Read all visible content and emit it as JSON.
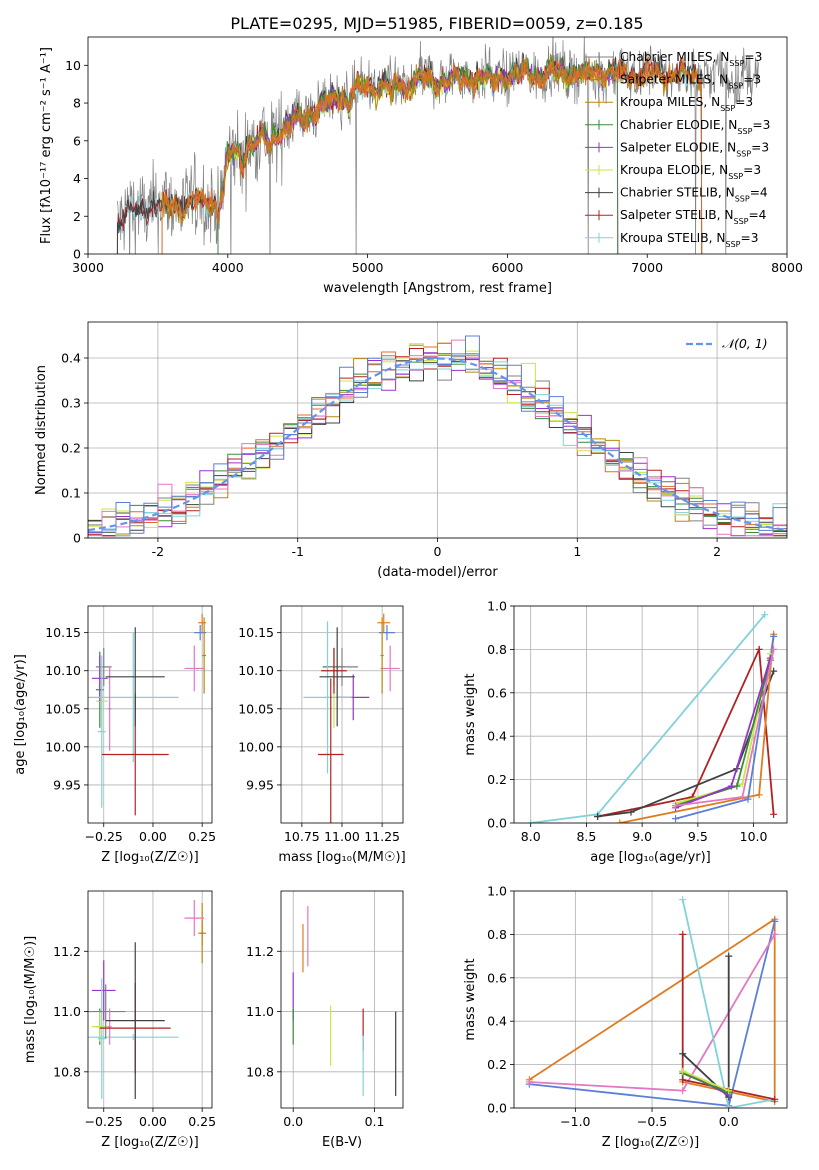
{
  "figure": {
    "title": "PLATE=0295, MJD=51985, FIBERID=0059, z=0.185"
  },
  "colors": {
    "chab_miles": "#808080",
    "salp_miles": "#e36a2e",
    "krou_miles": "#b8860b",
    "chab_elodie": "#3a8a3a",
    "salp_elodie": "#9932cc",
    "krou_elodie": "#c8e64a",
    "chab_stelib": "#404040",
    "salp_stelib": "#b22222",
    "krou_stelib": "#7fd3d8",
    "pink": "#e377c2",
    "blue": "#5b7fd6",
    "orange": "#e07b20",
    "normal": "#6495ed"
  },
  "chart_data": [
    {
      "id": "spectrum",
      "type": "line",
      "xlabel": "wavelength [Angstrom, rest frame]",
      "ylabel": "Flux [fλ10⁻¹⁷ erg cm⁻² s⁻¹ A⁻¹]",
      "xlim": [
        3000,
        8000
      ],
      "ylim": [
        0,
        11.5
      ],
      "xticks": [
        3000,
        4000,
        5000,
        6000,
        7000,
        8000
      ],
      "yticks": [
        0,
        2,
        4,
        6,
        8,
        10
      ],
      "grid": false,
      "legend_position": "upper right",
      "series": [
        {
          "name": "Chabrier MILES, N<sub>SSP</sub>=3",
          "color_key": "chab_miles",
          "x_range": [
            3210,
            7800
          ]
        },
        {
          "name": "Salpeter MILES, N<sub>SSP</sub>=3",
          "color_key": "salp_miles",
          "x_range": [
            3530,
            7390
          ]
        },
        {
          "name": "Kroupa MILES, N<sub>SSP</sub>=3",
          "color_key": "krou_miles",
          "x_range": [
            3530,
            7390
          ]
        },
        {
          "name": "Chabrier ELODIE, N<sub>SSP</sub>=3",
          "color_key": "chab_elodie",
          "x_range": [
            3930,
            6790
          ]
        },
        {
          "name": "Salpeter ELODIE, N<sub>SSP</sub>=3",
          "color_key": "salp_elodie",
          "x_range": [
            3930,
            6790
          ]
        },
        {
          "name": "Kroupa ELODIE, N<sub>SSP</sub>=3",
          "color_key": "krou_elodie",
          "x_range": [
            3930,
            6790
          ]
        },
        {
          "name": "Chabrier STELIB, N<sub>SSP</sub>=4",
          "color_key": "chab_stelib",
          "x_range": [
            3210,
            7390
          ]
        },
        {
          "name": "Salpeter STELIB, N<sub>SSP</sub>=4",
          "color_key": "salp_stelib",
          "x_range": [
            3210,
            7390
          ]
        },
        {
          "name": "Kroupa STELIB, N<sub>SSP</sub>=3",
          "color_key": "krou_stelib",
          "x_range": [
            3210,
            7390
          ]
        }
      ],
      "profile": {
        "x": [
          3210,
          3300,
          3500,
          3700,
          3900,
          4000,
          4300,
          4500,
          4800,
          5000,
          5300,
          5600,
          5900,
          6200,
          6500,
          6800,
          7100,
          7390,
          7600,
          7800
        ],
        "y": [
          1.8,
          2.3,
          2.6,
          2.7,
          2.9,
          5.2,
          6.3,
          7.2,
          8.4,
          8.9,
          9.2,
          9.3,
          9.5,
          9.6,
          9.7,
          9.6,
          9.6,
          9.5,
          9.4,
          9.3
        ]
      }
    },
    {
      "id": "residuals",
      "type": "histogram",
      "xlabel": "(data-model)/error",
      "ylabel": "Normed distribution",
      "xlim": [
        -2.5,
        2.5
      ],
      "ylim": [
        0,
        0.48
      ],
      "xticks": [
        -2,
        -1,
        0,
        1,
        2
      ],
      "yticks": [
        0.0,
        0.1,
        0.2,
        0.3,
        0.4
      ],
      "grid": true,
      "legend_position": "upper right",
      "legend": [
        {
          "name": "𝒩(0, 1)",
          "color_key": "normal"
        }
      ],
      "bin_width": 0.1
    },
    {
      "id": "Z-age",
      "type": "errorbar",
      "xlabel": "Z [log₁₀(Z/Z☉)]",
      "ylabel": "age  [log₁₀(age/yr)]",
      "xlim": [
        -0.33,
        0.3
      ],
      "ylim": [
        9.9,
        10.185
      ],
      "xticks": [
        -0.25,
        0.0,
        0.25
      ],
      "xticklabels": [
        "−0.25",
        "0.00",
        "0.25"
      ],
      "yticks": [
        9.95,
        10.0,
        10.05,
        10.1,
        10.15
      ],
      "yticklabels": [
        "9.95",
        "10.00",
        "10.05",
        "10.10",
        "10.15"
      ],
      "grid": true,
      "points": [
        {
          "x": -0.27,
          "xerr": 0.02,
          "y": 10.075,
          "yerr": 0.05,
          "color_key": "chab_elodie"
        },
        {
          "x": -0.26,
          "xerr": 0.03,
          "y": 10.06,
          "yerr": 0.04,
          "color_key": "krou_elodie"
        },
        {
          "x": -0.27,
          "xerr": 0.04,
          "y": 10.09,
          "yerr": 0.03,
          "color_key": "salp_elodie"
        },
        {
          "x": -0.25,
          "xerr": 0.04,
          "y": 10.105,
          "yerr": 0.025,
          "color_key": "chab_miles"
        },
        {
          "x": -0.26,
          "xerr": 0.02,
          "y": 10.02,
          "yerr": 0.1,
          "color_key": "krou_stelib"
        },
        {
          "x": -0.1,
          "xerr": 0.23,
          "y": 10.065,
          "yerr": 0.085,
          "color_key": "krou_stelib"
        },
        {
          "x": -0.22,
          "xerr": 0.01,
          "y": 10.05,
          "yerr": 0.055,
          "color_key": "pink"
        },
        {
          "x": -0.09,
          "xerr": 0.17,
          "y": 9.99,
          "yerr": 0.08,
          "color_key": "salp_stelib"
        },
        {
          "x": -0.09,
          "xerr": 0.15,
          "y": 10.092,
          "yerr": 0.065,
          "color_key": "chab_stelib"
        },
        {
          "x": 0.25,
          "xerr": 0.02,
          "y": 10.163,
          "yerr": 0.012,
          "color_key": "orange"
        },
        {
          "x": 0.24,
          "xerr": 0.03,
          "y": 10.15,
          "yerr": 0.01,
          "color_key": "blue"
        },
        {
          "x": 0.21,
          "xerr": 0.05,
          "y": 10.103,
          "yerr": 0.03,
          "color_key": "pink"
        },
        {
          "x": 0.26,
          "xerr": 0.01,
          "y": 10.12,
          "yerr": 0.05,
          "color_key": "krou_miles"
        }
      ]
    },
    {
      "id": "mass-age",
      "type": "errorbar",
      "xlabel": "mass [log₁₀(M/M☉)]",
      "ylabel": "",
      "xlim": [
        10.62,
        11.38
      ],
      "ylim": [
        9.9,
        10.185
      ],
      "xticks": [
        10.75,
        11.0,
        11.25
      ],
      "xticklabels": [
        "10.75",
        "11.00",
        "11.25"
      ],
      "yticks": [
        9.95,
        10.0,
        10.05,
        10.1,
        10.15
      ],
      "yticklabels": [
        "9.95",
        "10.00",
        "10.05",
        "10.10",
        "10.15"
      ],
      "grid": true,
      "points": [
        {
          "x": 10.95,
          "xerr": 0.07,
          "y": 10.105,
          "yerr": 0.025,
          "color_key": "chab_elodie"
        },
        {
          "x": 10.95,
          "xerr": 0.06,
          "y": 10.065,
          "yerr": 0.04,
          "color_key": "krou_elodie"
        },
        {
          "x": 11.07,
          "xerr": 0.1,
          "y": 10.065,
          "yerr": 0.03,
          "color_key": "salp_elodie"
        },
        {
          "x": 11.0,
          "xerr": 0.1,
          "y": 10.105,
          "yerr": 0.025,
          "color_key": "chab_miles"
        },
        {
          "x": 10.91,
          "xerr": 0.15,
          "y": 10.065,
          "yerr": 0.1,
          "color_key": "krou_stelib"
        },
        {
          "x": 10.95,
          "xerr": 0.08,
          "y": 10.1,
          "yerr": 0.03,
          "color_key": "salp_stelib"
        },
        {
          "x": 10.93,
          "xerr": 0.08,
          "y": 9.99,
          "yerr": 0.1,
          "color_key": "salp_stelib"
        },
        {
          "x": 10.97,
          "xerr": 0.11,
          "y": 10.092,
          "yerr": 0.065,
          "color_key": "chab_stelib"
        },
        {
          "x": 11.26,
          "xerr": 0.04,
          "y": 10.163,
          "yerr": 0.012,
          "color_key": "orange"
        },
        {
          "x": 11.28,
          "xerr": 0.05,
          "y": 10.15,
          "yerr": 0.01,
          "color_key": "blue"
        },
        {
          "x": 11.3,
          "xerr": 0.06,
          "y": 10.103,
          "yerr": 0.03,
          "color_key": "pink"
        },
        {
          "x": 11.25,
          "xerr": 0.01,
          "y": 10.12,
          "yerr": 0.05,
          "color_key": "krou_miles"
        }
      ]
    },
    {
      "id": "age-weight",
      "type": "line",
      "xlabel": "age  [log₁₀(age/yr)]",
      "ylabel": "mass weight",
      "xlim": [
        7.85,
        10.3
      ],
      "ylim": [
        0,
        1.0
      ],
      "xticks": [
        8.0,
        8.5,
        9.0,
        9.5,
        10.0
      ],
      "xticklabels": [
        "8.0",
        "8.5",
        "9.0",
        "9.5",
        "10.0"
      ],
      "yticks": [
        0,
        0.2,
        0.4,
        0.6,
        0.8,
        1.0
      ],
      "yticklabels": [
        "0.0",
        "0.2",
        "0.4",
        "0.6",
        "0.8",
        "1.0"
      ],
      "grid": true,
      "series": [
        {
          "color_key": "krou_stelib",
          "x": [
            8.0,
            8.6,
            10.1
          ],
          "y": [
            0.0,
            0.04,
            0.96
          ]
        },
        {
          "color_key": "salp_stelib",
          "x": [
            8.6,
            9.45,
            10.05,
            10.18
          ],
          "y": [
            0.03,
            0.12,
            0.8,
            0.04
          ]
        },
        {
          "color_key": "chab_stelib",
          "x": [
            8.6,
            8.9,
            9.85,
            10.18
          ],
          "y": [
            0.03,
            0.05,
            0.25,
            0.7
          ]
        },
        {
          "color_key": "orange",
          "x": [
            8.8,
            10.05,
            10.18
          ],
          "y": [
            0.0,
            0.13,
            0.87
          ]
        },
        {
          "color_key": "blue",
          "x": [
            9.3,
            9.95,
            10.18
          ],
          "y": [
            0.02,
            0.11,
            0.86
          ]
        },
        {
          "color_key": "krou_elodie",
          "x": [
            9.3,
            9.9,
            10.15
          ],
          "y": [
            0.09,
            0.18,
            0.78
          ]
        },
        {
          "color_key": "chab_elodie",
          "x": [
            9.3,
            9.85,
            10.15
          ],
          "y": [
            0.08,
            0.17,
            0.75
          ]
        },
        {
          "color_key": "salp_elodie",
          "x": [
            9.3,
            9.8,
            10.15
          ],
          "y": [
            0.07,
            0.17,
            0.76
          ]
        },
        {
          "color_key": "pink",
          "x": [
            9.3,
            9.9,
            10.18
          ],
          "y": [
            0.08,
            0.12,
            0.8
          ]
        }
      ]
    },
    {
      "id": "Z-mass",
      "type": "errorbar",
      "xlabel": "Z [log₁₀(Z/Z☉)]",
      "ylabel": "mass [log₁₀(M/M☉)]",
      "xlim": [
        -0.33,
        0.3
      ],
      "ylim": [
        10.68,
        11.4
      ],
      "xticks": [
        -0.25,
        0.0,
        0.25
      ],
      "xticklabels": [
        "−0.25",
        "0.00",
        "0.25"
      ],
      "yticks": [
        10.8,
        11.0,
        11.2
      ],
      "yticklabels": [
        "10.8",
        "11.0",
        "11.2"
      ],
      "grid": true,
      "points": [
        {
          "x": -0.27,
          "xerr": 0.02,
          "y": 10.95,
          "yerr": 0.06,
          "color_key": "chab_elodie"
        },
        {
          "x": -0.27,
          "xerr": 0.04,
          "y": 10.95,
          "yerr": 0.05,
          "color_key": "krou_elodie"
        },
        {
          "x": -0.25,
          "xerr": 0.06,
          "y": 11.07,
          "yerr": 0.1,
          "color_key": "salp_elodie"
        },
        {
          "x": -0.26,
          "xerr": 0.02,
          "y": 10.91,
          "yerr": 0.2,
          "color_key": "krou_stelib"
        },
        {
          "x": -0.1,
          "xerr": 0.23,
          "y": 10.915,
          "yerr": 0.01,
          "color_key": "krou_stelib"
        },
        {
          "x": -0.24,
          "xerr": 0.1,
          "y": 11.0,
          "yerr": 0.09,
          "color_key": "chab_miles"
        },
        {
          "x": -0.22,
          "xerr": 0.01,
          "y": 10.95,
          "yerr": 0.06,
          "color_key": "pink"
        },
        {
          "x": -0.09,
          "xerr": 0.18,
          "y": 10.945,
          "yerr": 0.15,
          "color_key": "salp_stelib"
        },
        {
          "x": -0.09,
          "xerr": 0.15,
          "y": 10.97,
          "yerr": 0.26,
          "color_key": "chab_stelib"
        },
        {
          "x": 0.25,
          "xerr": 0.02,
          "y": 11.26,
          "yerr": 0.04,
          "color_key": "orange"
        },
        {
          "x": 0.25,
          "xerr": 0.01,
          "y": 11.26,
          "yerr": 0.1,
          "color_key": "krou_miles"
        },
        {
          "x": 0.21,
          "xerr": 0.05,
          "y": 11.31,
          "yerr": 0.06,
          "color_key": "pink"
        }
      ]
    },
    {
      "id": "ebv-mass",
      "type": "errorbar",
      "xlabel": "E(B-V)",
      "ylabel": "",
      "xlim": [
        -0.015,
        0.135
      ],
      "ylim": [
        10.68,
        11.4
      ],
      "xticks": [
        0.0,
        0.1
      ],
      "xticklabels": [
        "0.0",
        "0.1"
      ],
      "yticks": [
        10.8,
        11.0,
        11.2
      ],
      "yticklabels": [
        "10.8",
        "11.0",
        "11.2"
      ],
      "grid": true,
      "points": [
        {
          "x": 0.0,
          "y": 11.05,
          "yerr": 0.08,
          "color_key": "salp_elodie"
        },
        {
          "x": 0.0,
          "y": 10.95,
          "yerr": 0.06,
          "color_key": "chab_elodie"
        },
        {
          "x": 0.012,
          "y": 11.21,
          "yerr": 0.08,
          "color_key": "orange"
        },
        {
          "x": 0.018,
          "y": 11.25,
          "yerr": 0.1,
          "color_key": "pink"
        },
        {
          "x": 0.046,
          "y": 10.92,
          "yerr": 0.1,
          "color_key": "krou_elodie"
        },
        {
          "x": 0.086,
          "y": 10.94,
          "yerr": 0.07,
          "color_key": "salp_stelib"
        },
        {
          "x": 0.086,
          "y": 10.82,
          "yerr": 0.1,
          "color_key": "krou_stelib"
        },
        {
          "x": 0.126,
          "y": 10.86,
          "yerr": 0.14,
          "color_key": "chab_stelib"
        }
      ]
    },
    {
      "id": "Z-weight",
      "type": "line",
      "xlabel": "Z [log₁₀(Z/Z☉)]",
      "ylabel": "mass weight",
      "xlim": [
        -1.4,
        0.38
      ],
      "ylim": [
        0,
        1.0
      ],
      "xticks": [
        -1.0,
        -0.5,
        0.0
      ],
      "xticklabels": [
        "−1.0",
        "−0.5",
        "0.0"
      ],
      "yticks": [
        0,
        0.2,
        0.4,
        0.6,
        0.8,
        1.0
      ],
      "yticklabels": [
        "0.0",
        "0.2",
        "0.4",
        "0.6",
        "0.8",
        "1.0"
      ],
      "grid": true,
      "series": [
        {
          "color_key": "orange",
          "x": [
            -1.3,
            0.3,
            0.3,
            -0.3
          ],
          "y": [
            0.13,
            0.87,
            0.03,
            0.12
          ]
        },
        {
          "color_key": "blue",
          "x": [
            -1.3,
            0.0,
            0.3
          ],
          "y": [
            0.11,
            0.01,
            0.86
          ]
        },
        {
          "color_key": "pink",
          "x": [
            -1.3,
            -0.3,
            0.3
          ],
          "y": [
            0.12,
            0.08,
            0.8
          ]
        },
        {
          "color_key": "krou_stelib",
          "x": [
            -0.3,
            0.0,
            0.3
          ],
          "y": [
            0.96,
            0.0,
            0.04
          ]
        },
        {
          "color_key": "salp_stelib",
          "x": [
            -0.3,
            -0.3,
            0.3
          ],
          "y": [
            0.8,
            0.13,
            0.04
          ]
        },
        {
          "color_key": "chab_stelib",
          "x": [
            -0.3,
            0.0,
            0.0
          ],
          "y": [
            0.25,
            0.05,
            0.7
          ]
        },
        {
          "color_key": "salp_elodie",
          "x": [
            -0.3,
            0.0
          ],
          "y": [
            0.17,
            0.06
          ]
        },
        {
          "color_key": "chab_elodie",
          "x": [
            -0.3,
            0.0
          ],
          "y": [
            0.16,
            0.07
          ]
        },
        {
          "color_key": "krou_elodie",
          "x": [
            -0.3,
            0.0
          ],
          "y": [
            0.17,
            0.08
          ]
        }
      ]
    }
  ]
}
